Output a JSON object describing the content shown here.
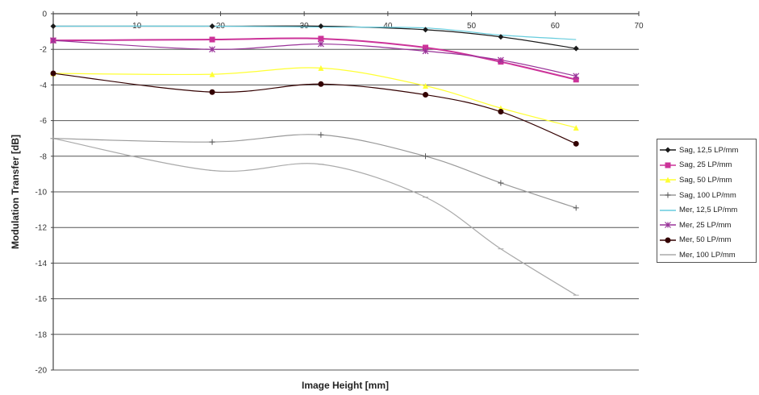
{
  "chart_data": {
    "type": "line",
    "xlabel": "Image Height [mm]",
    "ylabel": "Modulation Transfer [dB]",
    "xlim": [
      0,
      70
    ],
    "ylim": [
      -20,
      0
    ],
    "x_ticks": [
      0,
      10,
      20,
      30,
      40,
      50,
      60,
      70
    ],
    "y_ticks": [
      0,
      -2,
      -4,
      -6,
      -8,
      -10,
      -12,
      -14,
      -16,
      -18,
      -20
    ],
    "x_tick_labels": [
      "",
      "10",
      "20",
      "30",
      "40",
      "50",
      "60",
      "70"
    ],
    "y_tick_labels": [
      "0",
      "-2",
      "-4",
      "-6",
      "-8",
      "-10",
      "-12",
      "-14",
      "-16",
      "-18",
      "-20"
    ],
    "grid": "horizontal",
    "legend_position": "right",
    "x": [
      0,
      19,
      32,
      44.5,
      53.5,
      62.5
    ],
    "series": [
      {
        "name": "Sag, 12,5 LP/mm",
        "color": "#1a1a1a",
        "marker": "diamond",
        "values": [
          -0.7,
          -0.7,
          -0.7,
          -0.9,
          -1.3,
          -1.95
        ]
      },
      {
        "name": "Sag, 25 LP/mm",
        "color": "#cc3399",
        "marker": "square",
        "values": [
          -1.5,
          -1.45,
          -1.4,
          -1.9,
          -2.7,
          -3.7
        ]
      },
      {
        "name": "Sag, 50 LP/mm",
        "color": "#ffff33",
        "marker": "triangle",
        "values": [
          -3.35,
          -3.4,
          -3.05,
          -4.05,
          -5.3,
          -6.4
        ]
      },
      {
        "name": "Sag, 100 LP/mm",
        "color": "#999999",
        "marker": "plus",
        "values": [
          -7.0,
          -7.2,
          -6.8,
          -8.0,
          -9.5,
          -10.9
        ]
      },
      {
        "name": "Mer, 12,5 LP/mm",
        "color": "#66ccdd",
        "marker": "none",
        "values": [
          -0.7,
          -0.7,
          -0.75,
          -0.8,
          -1.2,
          -1.45
        ]
      },
      {
        "name": "Mer, 25 LP/mm",
        "color": "#993399",
        "marker": "star",
        "values": [
          -1.5,
          -2.0,
          -1.7,
          -2.1,
          -2.6,
          -3.5
        ]
      },
      {
        "name": "Mer, 50 LP/mm",
        "color": "#330000",
        "marker": "circle",
        "values": [
          -3.35,
          -4.4,
          -3.95,
          -4.55,
          -5.5,
          -7.3
        ]
      },
      {
        "name": "Mer, 100 LP/mm",
        "color": "#aaaaaa",
        "marker": "dash",
        "values": [
          -7.0,
          -8.8,
          -8.45,
          -10.3,
          -13.2,
          -15.8
        ]
      }
    ]
  }
}
